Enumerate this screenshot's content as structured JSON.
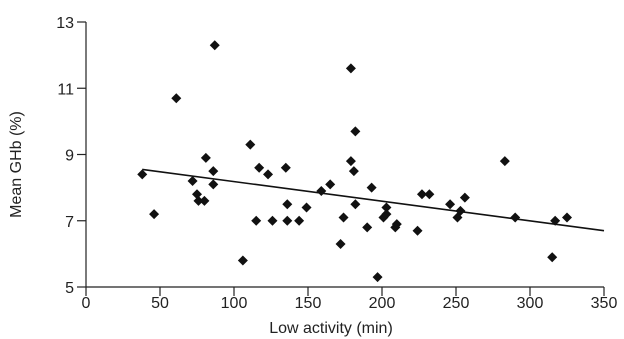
{
  "chart_data": {
    "type": "scatter",
    "xlabel": "Low activity (min)",
    "ylabel": "Mean GHb (%)",
    "xlim": [
      0,
      350
    ],
    "ylim": [
      5,
      13
    ],
    "x_ticks": [
      "0",
      "50",
      "100",
      "150",
      "200",
      "250",
      "300",
      "350"
    ],
    "y_ticks": [
      "5",
      "7",
      "9",
      "11",
      "13"
    ],
    "grid": false,
    "legend": "none",
    "marker": "diamond",
    "marker_color": "#111111",
    "points": [
      {
        "x": 38,
        "y": 8.4
      },
      {
        "x": 46,
        "y": 7.2
      },
      {
        "x": 61,
        "y": 10.7
      },
      {
        "x": 72,
        "y": 8.2
      },
      {
        "x": 75,
        "y": 7.8
      },
      {
        "x": 76,
        "y": 7.6
      },
      {
        "x": 80,
        "y": 7.6
      },
      {
        "x": 81,
        "y": 8.9
      },
      {
        "x": 86,
        "y": 8.1
      },
      {
        "x": 86,
        "y": 8.5
      },
      {
        "x": 87,
        "y": 12.3
      },
      {
        "x": 106,
        "y": 5.8
      },
      {
        "x": 111,
        "y": 9.3
      },
      {
        "x": 115,
        "y": 7.0
      },
      {
        "x": 117,
        "y": 8.6
      },
      {
        "x": 123,
        "y": 8.4
      },
      {
        "x": 126,
        "y": 7.0
      },
      {
        "x": 135,
        "y": 8.6
      },
      {
        "x": 136,
        "y": 7.5
      },
      {
        "x": 136,
        "y": 7.0
      },
      {
        "x": 144,
        "y": 7.0
      },
      {
        "x": 149,
        "y": 7.4
      },
      {
        "x": 159,
        "y": 7.9
      },
      {
        "x": 165,
        "y": 8.1
      },
      {
        "x": 172,
        "y": 6.3
      },
      {
        "x": 174,
        "y": 7.1
      },
      {
        "x": 179,
        "y": 11.6
      },
      {
        "x": 179,
        "y": 8.8
      },
      {
        "x": 181,
        "y": 8.5
      },
      {
        "x": 182,
        "y": 7.5
      },
      {
        "x": 182,
        "y": 9.7
      },
      {
        "x": 190,
        "y": 6.8
      },
      {
        "x": 193,
        "y": 8.0
      },
      {
        "x": 197,
        "y": 5.3
      },
      {
        "x": 201,
        "y": 7.1
      },
      {
        "x": 203,
        "y": 7.4
      },
      {
        "x": 203,
        "y": 7.2
      },
      {
        "x": 209,
        "y": 6.8
      },
      {
        "x": 210,
        "y": 6.9
      },
      {
        "x": 224,
        "y": 6.7
      },
      {
        "x": 227,
        "y": 7.8
      },
      {
        "x": 232,
        "y": 7.8
      },
      {
        "x": 246,
        "y": 7.5
      },
      {
        "x": 251,
        "y": 7.1
      },
      {
        "x": 253,
        "y": 7.3
      },
      {
        "x": 256,
        "y": 7.7
      },
      {
        "x": 283,
        "y": 8.8
      },
      {
        "x": 290,
        "y": 7.1
      },
      {
        "x": 315,
        "y": 5.9
      },
      {
        "x": 317,
        "y": 7.0
      },
      {
        "x": 325,
        "y": 7.1
      }
    ],
    "trend_line": {
      "x": [
        38,
        350
      ],
      "y": [
        8.55,
        6.7
      ]
    }
  }
}
